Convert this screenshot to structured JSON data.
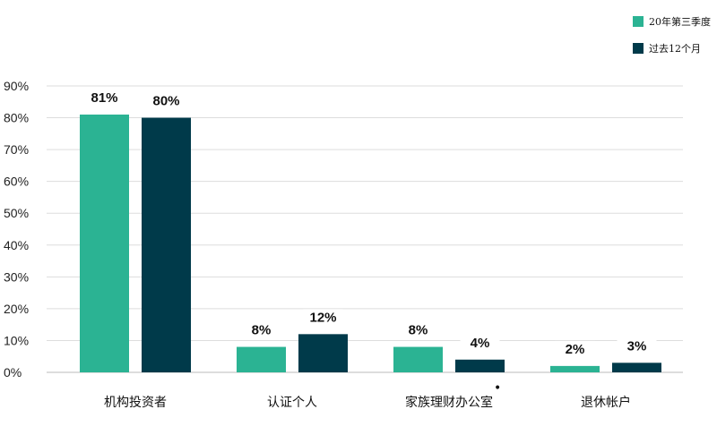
{
  "chart_data": {
    "type": "bar",
    "categories": [
      "机构投资者",
      "认证个人",
      "家族理财办公室",
      "退休帐户"
    ],
    "category_markers": [
      "",
      "",
      "•",
      ""
    ],
    "series": [
      {
        "name": "20年第三季度",
        "values": [
          81,
          8,
          8,
          2
        ],
        "labels": [
          "81%",
          "8%",
          "8%",
          "2%"
        ],
        "color": "#2bb393"
      },
      {
        "name": "过去12个月",
        "values": [
          80,
          12,
          4,
          3
        ],
        "labels": [
          "80%",
          "12%",
          "4%",
          "3%"
        ],
        "color": "#003a4a"
      }
    ],
    "y_ticks": [
      0,
      10,
      20,
      30,
      40,
      50,
      60,
      70,
      80,
      90
    ],
    "y_tick_labels": [
      "0%",
      "10%",
      "20%",
      "30%",
      "40%",
      "50%",
      "60%",
      "70%",
      "80%",
      "90%"
    ],
    "ylim": [
      0,
      90
    ],
    "grid": true,
    "legend_position": "top-right",
    "title": "",
    "xlabel": "",
    "ylabel": ""
  },
  "colors": {
    "grid": "#dddddd",
    "axis": "#bbbbbb",
    "label_bg": "#ffffff"
  }
}
